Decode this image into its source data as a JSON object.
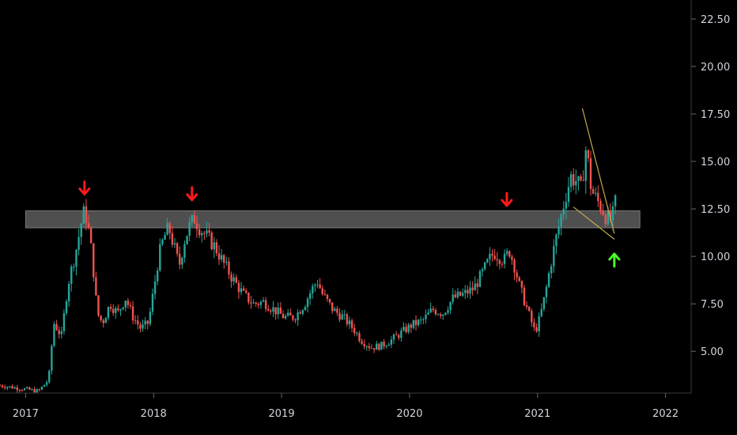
{
  "chart_data": {
    "type": "candlestick",
    "title": "",
    "xlabel": "",
    "ylabel": "",
    "grid": false,
    "xlim": [
      2016.8,
      2022.2
    ],
    "ylim": [
      2.8,
      23.5
    ],
    "x_ticks": [
      {
        "value": 2017,
        "label": "2017"
      },
      {
        "value": 2018,
        "label": "2018"
      },
      {
        "value": 2019,
        "label": "2019"
      },
      {
        "value": 2020,
        "label": "2020"
      },
      {
        "value": 2021,
        "label": "2021"
      },
      {
        "value": 2022,
        "label": "2022"
      }
    ],
    "y_ticks": [
      {
        "value": 5.0,
        "label": "5.00"
      },
      {
        "value": 7.5,
        "label": "7.50"
      },
      {
        "value": 10.0,
        "label": "10.00"
      },
      {
        "value": 12.5,
        "label": "12.50"
      },
      {
        "value": 15.0,
        "label": "15.00"
      },
      {
        "value": 17.5,
        "label": "17.50"
      },
      {
        "value": 20.0,
        "label": "20.00"
      },
      {
        "value": 22.5,
        "label": "22.50"
      }
    ],
    "close_path": [
      [
        2016.8,
        3.2
      ],
      [
        2017.1,
        2.9
      ],
      [
        2017.18,
        3.5
      ],
      [
        2017.22,
        6.5
      ],
      [
        2017.28,
        5.8
      ],
      [
        2017.33,
        8.5
      ],
      [
        2017.4,
        10.5
      ],
      [
        2017.45,
        12.3
      ],
      [
        2017.48,
        12.0
      ],
      [
        2017.52,
        10.0
      ],
      [
        2017.56,
        7.0
      ],
      [
        2017.6,
        6.5
      ],
      [
        2017.66,
        7.5
      ],
      [
        2017.72,
        7.0
      ],
      [
        2017.78,
        7.8
      ],
      [
        2017.84,
        6.8
      ],
      [
        2017.9,
        6.2
      ],
      [
        2017.96,
        6.5
      ],
      [
        2018.0,
        8.2
      ],
      [
        2018.04,
        10.0
      ],
      [
        2018.08,
        11.0
      ],
      [
        2018.12,
        11.5
      ],
      [
        2018.16,
        10.5
      ],
      [
        2018.2,
        9.5
      ],
      [
        2018.24,
        10.8
      ],
      [
        2018.28,
        11.6
      ],
      [
        2018.32,
        12.0
      ],
      [
        2018.36,
        11.5
      ],
      [
        2018.42,
        11.0
      ],
      [
        2018.48,
        10.5
      ],
      [
        2018.55,
        9.6
      ],
      [
        2018.62,
        8.8
      ],
      [
        2018.7,
        8.0
      ],
      [
        2018.78,
        7.5
      ],
      [
        2018.86,
        7.6
      ],
      [
        2018.94,
        7.2
      ],
      [
        2019.02,
        6.8
      ],
      [
        2019.1,
        6.8
      ],
      [
        2019.18,
        7.5
      ],
      [
        2019.24,
        8.3
      ],
      [
        2019.28,
        8.7
      ],
      [
        2019.32,
        8.0
      ],
      [
        2019.4,
        7.2
      ],
      [
        2019.48,
        6.8
      ],
      [
        2019.56,
        6.2
      ],
      [
        2019.62,
        5.6
      ],
      [
        2019.7,
        5.2
      ],
      [
        2019.78,
        5.3
      ],
      [
        2019.86,
        5.6
      ],
      [
        2019.94,
        6.0
      ],
      [
        2020.02,
        6.4
      ],
      [
        2020.1,
        6.6
      ],
      [
        2020.18,
        7.2
      ],
      [
        2020.26,
        7.0
      ],
      [
        2020.34,
        7.8
      ],
      [
        2020.42,
        8.0
      ],
      [
        2020.5,
        8.3
      ],
      [
        2020.56,
        9.0
      ],
      [
        2020.62,
        9.8
      ],
      [
        2020.66,
        10.2
      ],
      [
        2020.7,
        10.0
      ],
      [
        2020.74,
        9.8
      ],
      [
        2020.78,
        10.3
      ],
      [
        2020.82,
        9.5
      ],
      [
        2020.86,
        8.4
      ],
      [
        2020.9,
        7.6
      ],
      [
        2020.94,
        6.8
      ],
      [
        2020.98,
        6.0
      ],
      [
        2021.02,
        6.8
      ],
      [
        2021.06,
        8.0
      ],
      [
        2021.1,
        9.5
      ],
      [
        2021.14,
        10.8
      ],
      [
        2021.18,
        12.0
      ],
      [
        2021.22,
        13.2
      ],
      [
        2021.26,
        14.2
      ],
      [
        2021.3,
        14.0
      ],
      [
        2021.34,
        13.5
      ],
      [
        2021.38,
        15.8
      ],
      [
        2021.42,
        13.5
      ],
      [
        2021.46,
        13.0
      ],
      [
        2021.5,
        12.6
      ],
      [
        2021.54,
        12.0
      ],
      [
        2021.58,
        11.9
      ],
      [
        2021.62,
        13.2
      ]
    ],
    "resistance_zone": [
      11.5,
      12.4
    ],
    "resistance_zone_range": [
      2017.0,
      2021.8
    ],
    "wedge_lines": [
      {
        "from": [
          2021.35,
          17.8
        ],
        "to": [
          2021.6,
          11.2
        ],
        "color": "#c6a94a"
      },
      {
        "from": [
          2021.28,
          12.6
        ],
        "to": [
          2021.6,
          10.9
        ],
        "color": "#c6a94a"
      }
    ],
    "markers": [
      {
        "x": 2017.46,
        "y": 13.6,
        "direction": "down",
        "color": "#ff1a1a"
      },
      {
        "x": 2018.3,
        "y": 13.3,
        "direction": "down",
        "color": "#ff1a1a"
      },
      {
        "x": 2020.76,
        "y": 13.0,
        "direction": "down",
        "color": "#ff1a1a"
      },
      {
        "x": 2021.6,
        "y": 9.8,
        "direction": "up",
        "color": "#4cff2a"
      }
    ],
    "colors": {
      "background": "#000000",
      "up": "#26a69a",
      "down": "#ef5350",
      "axis": "#d1d4dc",
      "zone": "#8f8f8f"
    }
  }
}
